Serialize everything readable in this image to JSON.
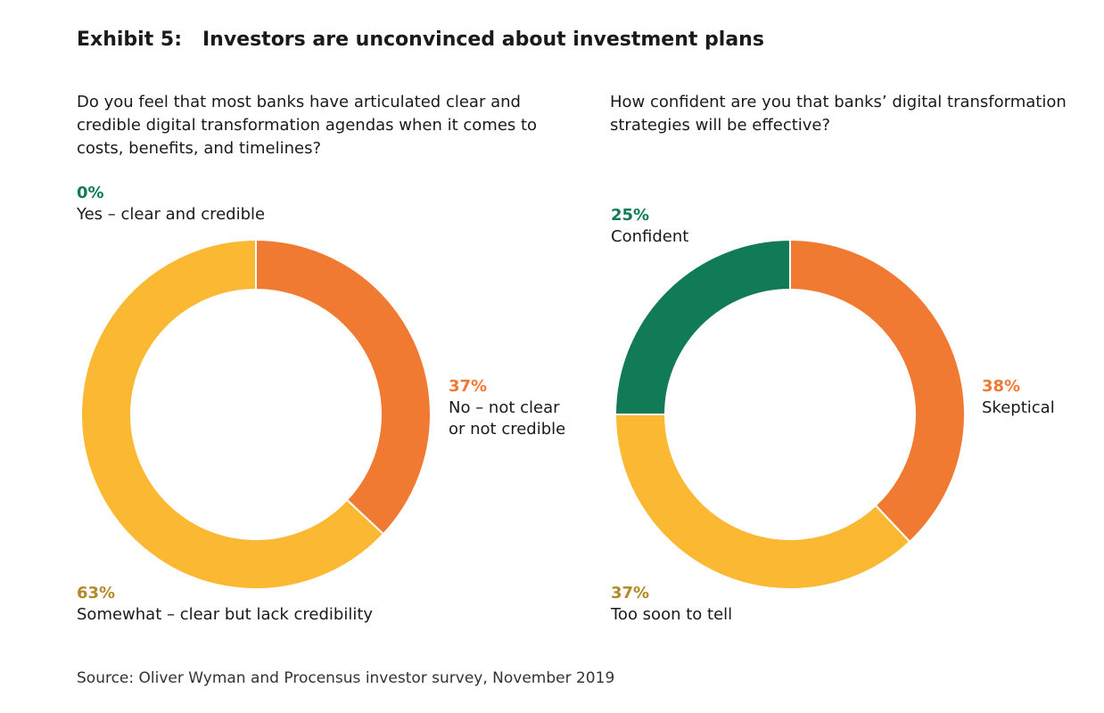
{
  "title": "Exhibit 5:   Investors are unconvinced about investment plans",
  "source": "Source: Oliver Wyman and Procensus investor survey, November 2019",
  "colors": {
    "green": "#117a57",
    "orange": "#f07a32",
    "yellow": "#fbb833",
    "yellow_label": "#b38a2a"
  },
  "chart_data": [
    {
      "type": "pie",
      "question": "Do you feel that most banks have articulated clear and credible digital transformation agendas when it comes to costs, benefits, and timelines?",
      "slices": [
        {
          "pct_text": "0%",
          "label": "Yes – clear and credible",
          "value": 0,
          "color": "#117a57"
        },
        {
          "pct_text": "37%",
          "label": "No – not clear or not credible",
          "label_lines": [
            "No – not clear",
            "or not credible"
          ],
          "value": 37,
          "color": "#f07a32"
        },
        {
          "pct_text": "63%",
          "label": "Somewhat – clear but lack credibility",
          "value": 63,
          "color": "#fbb833"
        }
      ]
    },
    {
      "type": "pie",
      "question": "How confident are you that banks’ digital transformation strategies will be effective?",
      "slices": [
        {
          "pct_text": "25%",
          "label": "Confident",
          "value": 25,
          "color": "#117a57"
        },
        {
          "pct_text": "38%",
          "label": "Skeptical",
          "value": 38,
          "color": "#f07a32"
        },
        {
          "pct_text": "37%",
          "label": "Too soon to tell",
          "value": 37,
          "color": "#fbb833"
        }
      ]
    }
  ]
}
